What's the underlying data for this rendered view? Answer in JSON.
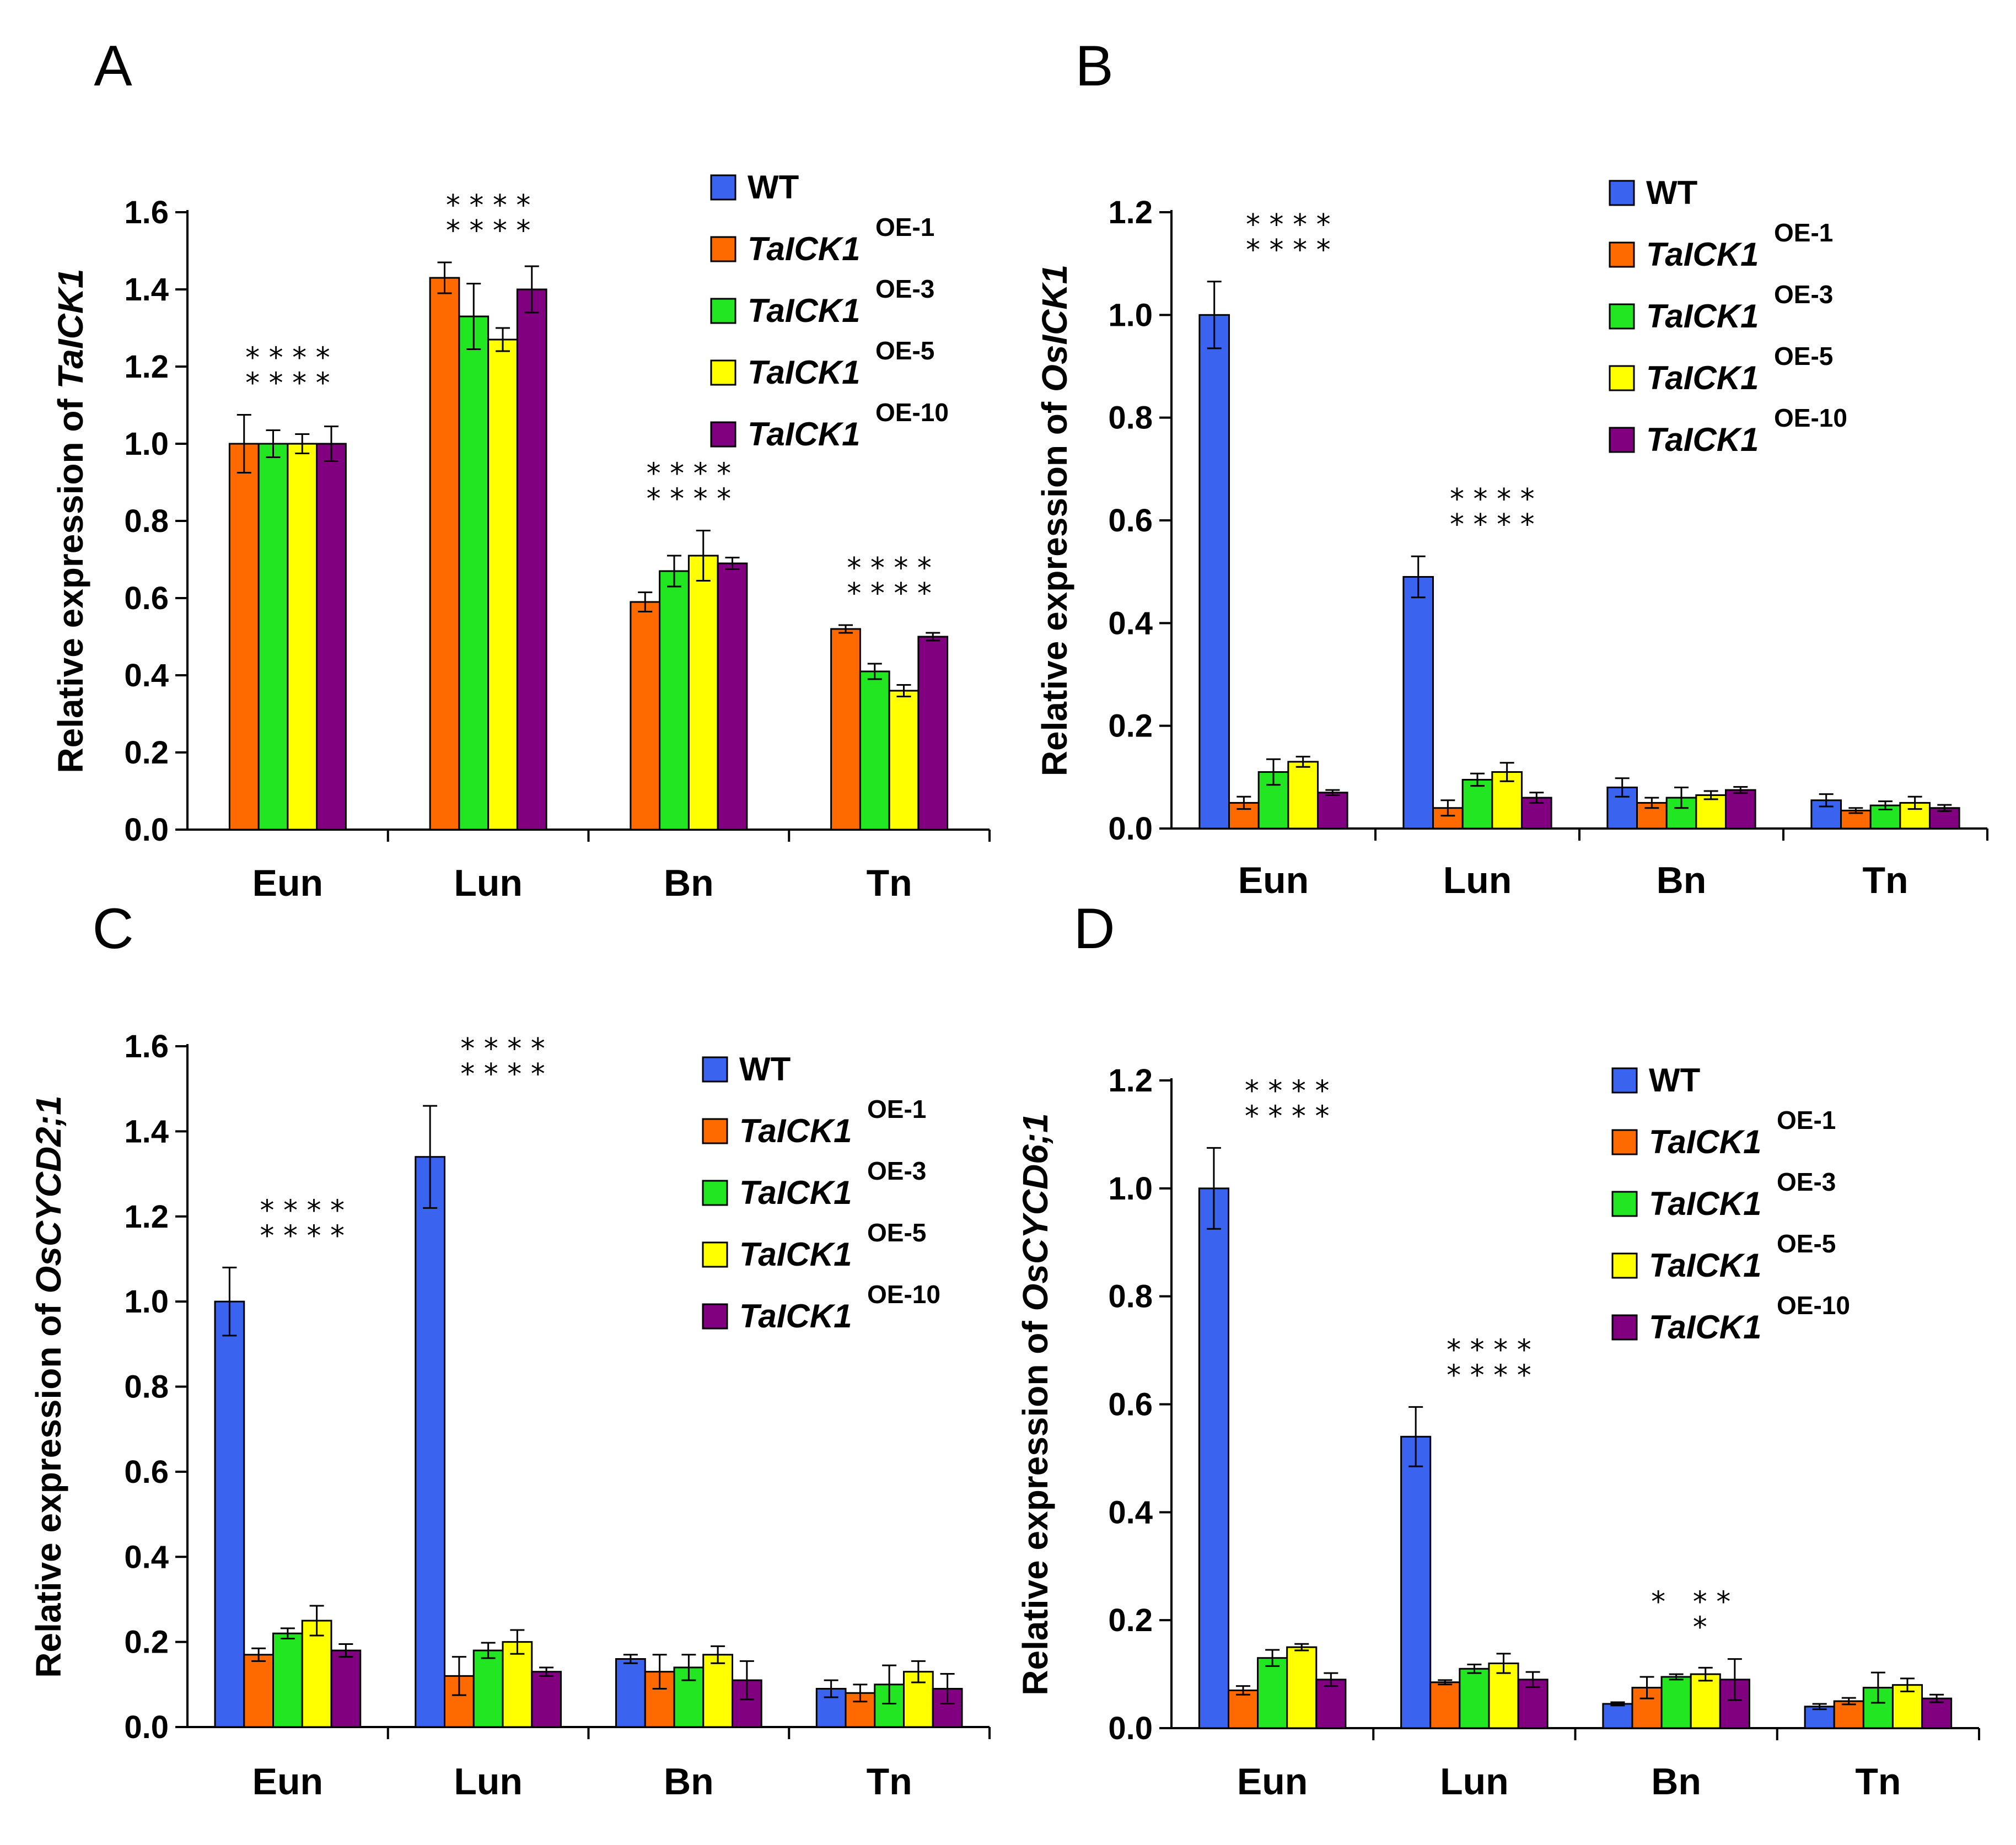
{
  "colors": {
    "WT": "#3a64f0",
    "OE-1": "#ff6a00",
    "OE-3": "#22e622",
    "OE-5": "#ffff00",
    "OE-10": "#800080"
  },
  "chart_data": [
    {
      "panel": "A",
      "type": "bar",
      "ylabel_prefix": "Relative expression of ",
      "ylabel_gene": "TaICK1",
      "ylim": [
        0,
        1.6
      ],
      "yticks": [
        "0.0",
        "0.2",
        "0.4",
        "0.6",
        "0.8",
        "1.0",
        "1.2",
        "1.4",
        "1.6"
      ],
      "categories": [
        "Eun",
        "Lun",
        "Bn",
        "Tn"
      ],
      "legend": [
        {
          "key": "WT",
          "name": "WT",
          "sup": ""
        },
        {
          "key": "OE-1",
          "name": "TaICK1",
          "sup": "OE-1"
        },
        {
          "key": "OE-3",
          "name": "TaICK1",
          "sup": "OE-3"
        },
        {
          "key": "OE-5",
          "name": "TaICK1",
          "sup": "OE-5"
        },
        {
          "key": "OE-10",
          "name": "TaICK1",
          "sup": "OE-10"
        }
      ],
      "series": [
        {
          "key": "OE-1",
          "values": [
            1.0,
            1.43,
            0.59,
            0.52
          ],
          "errors": [
            0.075,
            0.04,
            0.025,
            0.01
          ]
        },
        {
          "key": "OE-3",
          "values": [
            1.0,
            1.33,
            0.67,
            0.41
          ],
          "errors": [
            0.035,
            0.085,
            0.04,
            0.02
          ]
        },
        {
          "key": "OE-5",
          "values": [
            1.0,
            1.27,
            0.71,
            0.36
          ],
          "errors": [
            0.025,
            0.03,
            0.065,
            0.015
          ]
        },
        {
          "key": "OE-10",
          "values": [
            1.0,
            1.4,
            0.69,
            0.5
          ],
          "errors": [
            0.045,
            0.06,
            0.015,
            0.01
          ]
        }
      ],
      "significance": [
        {
          "category": "Eun",
          "rows": [
            "* * * *",
            "* * * *"
          ]
        },
        {
          "category": "Lun",
          "rows": [
            "* * * *",
            "* * * *"
          ]
        },
        {
          "category": "Bn",
          "rows": [
            "* * * *",
            "* * * *"
          ]
        },
        {
          "category": "Tn",
          "rows": [
            "* * * *",
            "* * * *"
          ]
        }
      ]
    },
    {
      "panel": "B",
      "type": "bar",
      "ylabel_prefix": "Relative expression of ",
      "ylabel_gene": "OsICK1",
      "ylim": [
        0,
        1.2
      ],
      "yticks": [
        "0.0",
        "0.2",
        "0.4",
        "0.6",
        "0.8",
        "1.0",
        "1.2"
      ],
      "categories": [
        "Eun",
        "Lun",
        "Bn",
        "Tn"
      ],
      "legend": [
        {
          "key": "WT",
          "name": "WT",
          "sup": ""
        },
        {
          "key": "OE-1",
          "name": "TaICK1",
          "sup": "OE-1"
        },
        {
          "key": "OE-3",
          "name": "TaICK1",
          "sup": "OE-3"
        },
        {
          "key": "OE-5",
          "name": "TaICK1",
          "sup": "OE-5"
        },
        {
          "key": "OE-10",
          "name": "TaICK1",
          "sup": "OE-10"
        }
      ],
      "series": [
        {
          "key": "WT",
          "values": [
            1.0,
            0.49,
            0.08,
            0.055
          ],
          "errors": [
            0.065,
            0.04,
            0.018,
            0.012
          ]
        },
        {
          "key": "OE-1",
          "values": [
            0.05,
            0.04,
            0.05,
            0.035
          ],
          "errors": [
            0.012,
            0.015,
            0.01,
            0.005
          ]
        },
        {
          "key": "OE-3",
          "values": [
            0.11,
            0.095,
            0.06,
            0.045
          ],
          "errors": [
            0.025,
            0.012,
            0.02,
            0.008
          ]
        },
        {
          "key": "OE-5",
          "values": [
            0.13,
            0.11,
            0.065,
            0.05
          ],
          "errors": [
            0.01,
            0.018,
            0.008,
            0.012
          ]
        },
        {
          "key": "OE-10",
          "values": [
            0.07,
            0.06,
            0.075,
            0.04
          ],
          "errors": [
            0.005,
            0.01,
            0.006,
            0.006
          ]
        }
      ],
      "significance": [
        {
          "category": "Eun",
          "rows": [
            "* * * *",
            "* * * *"
          ]
        },
        {
          "category": "Lun",
          "rows": [
            "* * * *",
            "* * * *"
          ]
        }
      ]
    },
    {
      "panel": "C",
      "type": "bar",
      "ylabel_prefix": "Relative expression of ",
      "ylabel_gene": "OsCYCD2;1",
      "ylim": [
        0,
        1.6
      ],
      "yticks": [
        "0.0",
        "0.2",
        "0.4",
        "0.6",
        "0.8",
        "1.0",
        "1.2",
        "1.4",
        "1.6"
      ],
      "categories": [
        "Eun",
        "Lun",
        "Bn",
        "Tn"
      ],
      "legend": [
        {
          "key": "WT",
          "name": "WT",
          "sup": ""
        },
        {
          "key": "OE-1",
          "name": "TaICK1",
          "sup": "OE-1"
        },
        {
          "key": "OE-3",
          "name": "TaICK1",
          "sup": "OE-3"
        },
        {
          "key": "OE-5",
          "name": "TaICK1",
          "sup": "OE-5"
        },
        {
          "key": "OE-10",
          "name": "TaICK1",
          "sup": "OE-10"
        }
      ],
      "series": [
        {
          "key": "WT",
          "values": [
            1.0,
            1.34,
            0.16,
            0.09
          ],
          "errors": [
            0.08,
            0.12,
            0.01,
            0.02
          ]
        },
        {
          "key": "OE-1",
          "values": [
            0.17,
            0.12,
            0.13,
            0.08
          ],
          "errors": [
            0.015,
            0.045,
            0.04,
            0.02
          ]
        },
        {
          "key": "OE-3",
          "values": [
            0.22,
            0.18,
            0.14,
            0.1
          ],
          "errors": [
            0.012,
            0.018,
            0.03,
            0.045
          ]
        },
        {
          "key": "OE-5",
          "values": [
            0.25,
            0.2,
            0.17,
            0.13
          ],
          "errors": [
            0.035,
            0.028,
            0.02,
            0.025
          ]
        },
        {
          "key": "OE-10",
          "values": [
            0.18,
            0.13,
            0.11,
            0.09
          ],
          "errors": [
            0.015,
            0.01,
            0.045,
            0.035
          ]
        }
      ],
      "significance": [
        {
          "category": "Eun",
          "rows": [
            "* * * *",
            "* * * *"
          ]
        },
        {
          "category": "Lun",
          "rows": [
            "* * * *",
            "* * * *"
          ]
        }
      ]
    },
    {
      "panel": "D",
      "type": "bar",
      "ylabel_prefix": "Relative expression of ",
      "ylabel_gene": "OsCYCD6;1",
      "ylim": [
        0,
        1.2
      ],
      "yticks": [
        "0.0",
        "0.2",
        "0.4",
        "0.6",
        "0.8",
        "1.0",
        "1.2"
      ],
      "categories": [
        "Eun",
        "Lun",
        "Bn",
        "Tn"
      ],
      "legend": [
        {
          "key": "WT",
          "name": "WT",
          "sup": ""
        },
        {
          "key": "OE-1",
          "name": "TaICK1",
          "sup": "OE-1"
        },
        {
          "key": "OE-3",
          "name": "TaICK1",
          "sup": "OE-3"
        },
        {
          "key": "OE-5",
          "name": "TaICK1",
          "sup": "OE-5"
        },
        {
          "key": "OE-10",
          "name": "TaICK1",
          "sup": "OE-10"
        }
      ],
      "series": [
        {
          "key": "WT",
          "values": [
            1.0,
            0.54,
            0.045,
            0.04
          ],
          "errors": [
            0.075,
            0.055,
            0.003,
            0.005
          ]
        },
        {
          "key": "OE-1",
          "values": [
            0.07,
            0.085,
            0.075,
            0.05
          ],
          "errors": [
            0.008,
            0.004,
            0.02,
            0.006
          ]
        },
        {
          "key": "OE-3",
          "values": [
            0.13,
            0.11,
            0.095,
            0.075
          ],
          "errors": [
            0.015,
            0.008,
            0.005,
            0.028
          ]
        },
        {
          "key": "OE-5",
          "values": [
            0.15,
            0.12,
            0.1,
            0.08
          ],
          "errors": [
            0.006,
            0.018,
            0.012,
            0.012
          ]
        },
        {
          "key": "OE-10",
          "values": [
            0.09,
            0.09,
            0.09,
            0.055
          ],
          "errors": [
            0.012,
            0.014,
            0.038,
            0.007
          ]
        }
      ],
      "significance": [
        {
          "category": "Eun",
          "rows": [
            "* * * *",
            "* * * *"
          ]
        },
        {
          "category": "Lun",
          "rows": [
            "* * * *",
            "* * * *"
          ]
        },
        {
          "category": "Bn",
          "rows": [
            "*   * *",
            "  *"
          ]
        }
      ]
    }
  ]
}
